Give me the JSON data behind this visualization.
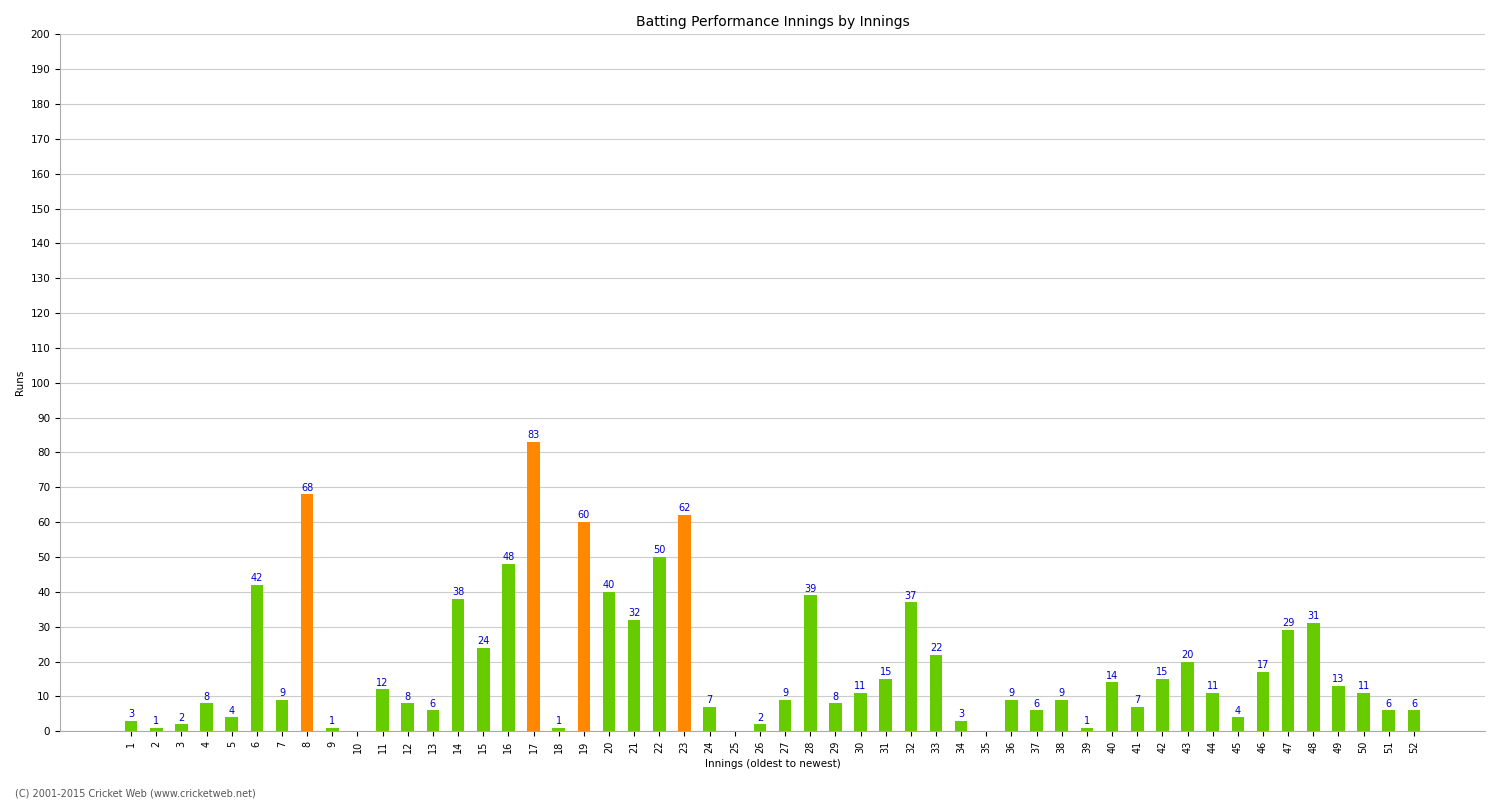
{
  "innings": [
    1,
    2,
    3,
    4,
    5,
    6,
    7,
    8,
    9,
    10,
    11,
    12,
    13,
    14,
    15,
    16,
    17,
    18,
    19,
    20,
    21,
    22,
    23,
    24,
    25,
    26,
    27,
    28,
    29,
    30,
    31,
    32,
    33,
    34,
    35,
    36,
    37,
    38,
    39,
    40,
    41,
    42,
    43,
    44,
    45,
    46,
    47,
    48,
    49,
    50,
    51,
    52
  ],
  "values": [
    3,
    1,
    2,
    8,
    4,
    42,
    9,
    68,
    1,
    0,
    12,
    8,
    6,
    38,
    24,
    48,
    83,
    1,
    60,
    40,
    32,
    50,
    62,
    7,
    0,
    2,
    9,
    39,
    8,
    11,
    15,
    37,
    22,
    3,
    0,
    9,
    6,
    9,
    1,
    14,
    7,
    15,
    20,
    11,
    4,
    17,
    29,
    31,
    13,
    11,
    6,
    6
  ],
  "orange_indices": [
    7,
    16,
    18,
    22
  ],
  "bar_color_green": "#66cc00",
  "bar_color_orange": "#ff8800",
  "label_color": "#0000cc",
  "title": "Batting Performance Innings by Innings",
  "ylabel": "Runs",
  "xlabel": "Innings (oldest to newest)",
  "ylim": [
    0,
    200
  ],
  "yticks": [
    0,
    10,
    20,
    30,
    40,
    50,
    60,
    70,
    80,
    90,
    100,
    110,
    120,
    130,
    140,
    150,
    160,
    170,
    180,
    190,
    200
  ],
  "background_color": "#ffffff",
  "grid_color": "#cccccc",
  "label_fontsize": 7,
  "title_fontsize": 10,
  "axis_fontsize": 7.5,
  "tick_label_fontsize": 7,
  "copyright": "(C) 2001-2015 Cricket Web (www.cricketweb.net)"
}
